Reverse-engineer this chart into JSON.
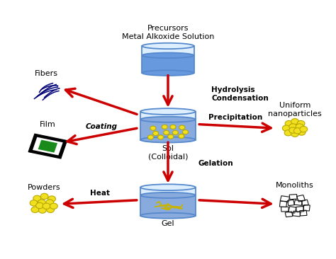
{
  "background_color": "#ffffff",
  "fig_width": 4.74,
  "fig_height": 3.66,
  "precursor_label": "Precursors\nMetal Alkoxide Solution",
  "sol_label": "Sol\n(Colloidal)",
  "gel_label": "Gel",
  "hydrolysis_label": "Hydrolysis\nCondensation",
  "precipitation_label": "Precipitation",
  "gelation_label": "Gelation",
  "coating_label": "Coating",
  "heat_label": "Heat",
  "fibers_label": "Fibers",
  "film_label": "Film",
  "powders_label": "Powders",
  "uniform_label": "Uniform\nnanoparticles",
  "monoliths_label": "Monoliths",
  "arrow_color": "#cc0000",
  "container_edge_color": "#5588cc",
  "container_fill_top": "#e8f0fa",
  "container_fill_liquid": "#7aaee0",
  "particle_color": "#f0e020",
  "particle_edge": "#b8a800",
  "text_color": "#000000",
  "label_fontsize": 8.0,
  "small_fontsize": 7.5,
  "fiber_color": "#000077",
  "film_frame_color": "#111111",
  "film_inner_color": "#ffffff",
  "film_green_color": "#1a8a1a",
  "monolith_edge": "#111111"
}
